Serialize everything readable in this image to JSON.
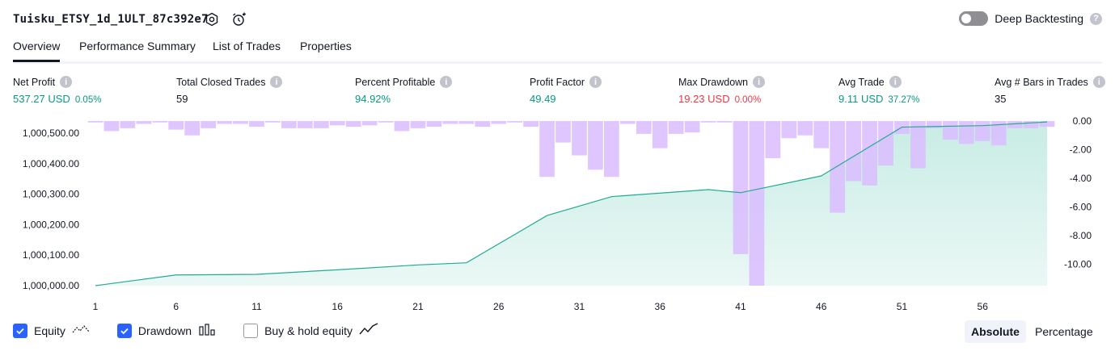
{
  "header": {
    "strategy_title": "Tuisku_ETSY_1d_1ULT_87c392e7",
    "deep_backtesting_label": "Deep Backtesting",
    "deep_backtesting_enabled": false
  },
  "tabs": [
    "Overview",
    "Performance Summary",
    "List of Trades",
    "Properties"
  ],
  "active_tab": "Overview",
  "metrics": [
    {
      "label": "Net Profit",
      "value": "537.27 USD",
      "pct": "0.05%",
      "tone": "pos"
    },
    {
      "label": "Total Closed Trades",
      "value": "59",
      "pct": "",
      "tone": "plain"
    },
    {
      "label": "Percent Profitable",
      "value": "94.92%",
      "pct": "",
      "tone": "pos"
    },
    {
      "label": "Profit Factor",
      "value": "49.49",
      "pct": "",
      "tone": "pos"
    },
    {
      "label": "Max Drawdown",
      "value": "19.23 USD",
      "pct": "0.00%",
      "tone": "neg"
    },
    {
      "label": "Avg Trade",
      "value": "9.11 USD",
      "pct": "37.27%",
      "tone": "pos"
    },
    {
      "label": "Avg # Bars in Trades",
      "value": "35",
      "pct": "",
      "tone": "plain"
    }
  ],
  "legend": {
    "equity_label": "Equity",
    "equity_checked": true,
    "drawdown_label": "Drawdown",
    "drawdown_checked": true,
    "buyhold_label": "Buy & hold equity",
    "buyhold_checked": false
  },
  "modes": [
    "Absolute",
    "Percentage"
  ],
  "active_mode": "Absolute",
  "colors": {
    "equity_line": "#22ab94",
    "equity_fill": "#c5ebe3",
    "drawdown_bar": "#dbbcff",
    "overlap_bar": "#b5bfea",
    "checkbox": "#2962ff",
    "positive": "#089981",
    "negative": "#f23645"
  },
  "chart_data": {
    "type": "area+bar",
    "x": [
      1,
      2,
      3,
      4,
      5,
      6,
      7,
      8,
      9,
      10,
      11,
      12,
      13,
      14,
      15,
      16,
      17,
      18,
      19,
      20,
      21,
      22,
      23,
      24,
      25,
      26,
      27,
      28,
      29,
      30,
      31,
      32,
      33,
      34,
      35,
      36,
      37,
      38,
      39,
      40,
      41,
      42,
      43,
      44,
      45,
      46,
      47,
      48,
      49,
      50,
      51,
      52,
      53,
      54,
      55,
      56,
      57,
      58,
      59,
      60
    ],
    "x_tick_labels": [
      "1",
      "6",
      "11",
      "16",
      "21",
      "26",
      "31",
      "36",
      "41",
      "46",
      "51",
      "56"
    ],
    "x_tick_values": [
      1,
      6,
      11,
      16,
      21,
      26,
      31,
      36,
      41,
      46,
      51,
      56
    ],
    "equity_series": {
      "name": "Equity",
      "points": [
        [
          1,
          1000000
        ],
        [
          6,
          1000035
        ],
        [
          11,
          1000037
        ],
        [
          16,
          1000052
        ],
        [
          21,
          1000068
        ],
        [
          24,
          1000075
        ],
        [
          29,
          1000230
        ],
        [
          33,
          1000292
        ],
        [
          39,
          1000315
        ],
        [
          41,
          1000305
        ],
        [
          46,
          1000360
        ],
        [
          51,
          1000520
        ],
        [
          56,
          1000525
        ],
        [
          60,
          1000537
        ]
      ]
    },
    "drawdown_series": {
      "name": "Drawdown",
      "values": [
        -0.1,
        -0.7,
        -0.5,
        -0.2,
        -0.1,
        -0.6,
        -1.0,
        -0.5,
        -0.2,
        -0.2,
        -0.4,
        -0.1,
        -0.5,
        -0.5,
        -0.5,
        -0.3,
        -0.4,
        -0.3,
        -0.1,
        -0.7,
        -0.5,
        -0.4,
        -0.2,
        -0.2,
        -0.4,
        -0.2,
        -0.1,
        -0.4,
        -3.9,
        -1.5,
        -2.4,
        -3.4,
        -3.9,
        -0.2,
        -0.9,
        -1.9,
        -0.9,
        -0.8,
        -0.1,
        -0.1,
        -9.3,
        -11.5,
        -2.6,
        -1.2,
        -1.0,
        -1.9,
        -6.4,
        -4.2,
        -4.5,
        -3.1,
        -0.9,
        -3.3,
        -0.5,
        -1.3,
        -1.6,
        -1.4,
        -1.7,
        -0.5,
        -0.5,
        -0.4
      ]
    },
    "y_left": {
      "ticks": [
        "1,000,000.00",
        "1,000,100.00",
        "1,000,200.00",
        "1,000,300.00",
        "1,000,400.00",
        "1,000,500.00"
      ],
      "tick_values": [
        1000000,
        1000100,
        1000200,
        1000300,
        1000400,
        1000500
      ],
      "range": [
        1000000,
        1000540
      ]
    },
    "y_right": {
      "ticks": [
        "0.00",
        "-2.00",
        "-4.00",
        "-6.00",
        "-8.00",
        "-10.00"
      ],
      "tick_values": [
        0,
        -2,
        -4,
        -6,
        -8,
        -10
      ],
      "range": [
        -11.5,
        0
      ]
    },
    "grid": false
  }
}
